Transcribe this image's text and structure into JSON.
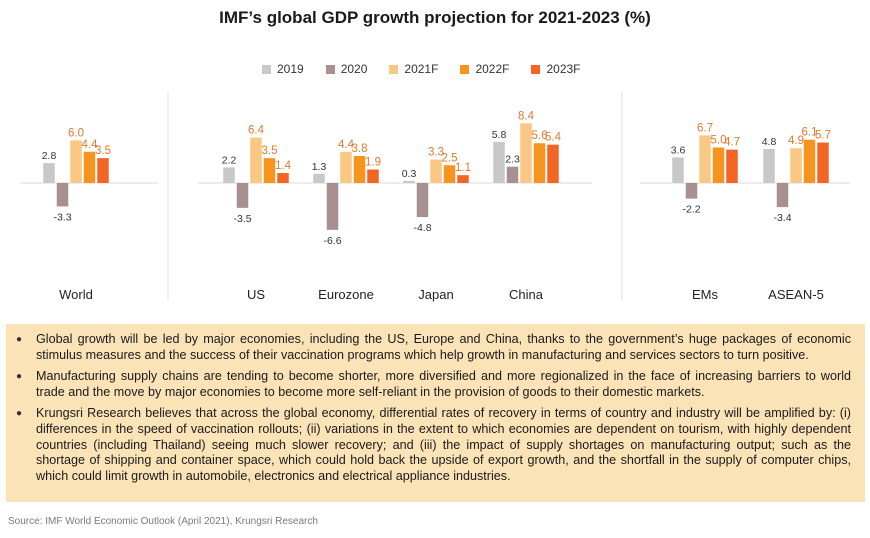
{
  "title": "IMF’s global GDP growth projection for 2021-2023 (%)",
  "colors": {
    "2019": "#c8c8c8",
    "2020": "#a89090",
    "2021F": "#fbc784",
    "2022F": "#f7941d",
    "2023F": "#f26522",
    "negative_label": "#333333",
    "positive_label": "#e07a2e",
    "bullet_bg": "#fbe3b8"
  },
  "legend": [
    {
      "label": "2019",
      "color_key": "2019"
    },
    {
      "label": "2020",
      "color_key": "2020"
    },
    {
      "label": "2021F",
      "color_key": "2021F"
    },
    {
      "label": "2022F",
      "color_key": "2022F"
    },
    {
      "label": "2023F",
      "color_key": "2023F"
    }
  ],
  "chart_data": {
    "type": "bar",
    "categories": [
      "World",
      "US",
      "Eurozone",
      "Japan",
      "China",
      "EMs",
      "ASEAN-5"
    ],
    "series": [
      {
        "name": "2019",
        "values": [
          2.8,
          2.2,
          1.3,
          0.3,
          5.8,
          3.6,
          4.8
        ]
      },
      {
        "name": "2020",
        "values": [
          -3.3,
          -3.5,
          -6.6,
          -4.8,
          2.3,
          -2.2,
          -3.4
        ]
      },
      {
        "name": "2021F",
        "values": [
          6.0,
          6.4,
          4.4,
          3.3,
          8.4,
          6.7,
          4.9
        ]
      },
      {
        "name": "2022F",
        "values": [
          4.4,
          3.5,
          3.8,
          2.5,
          5.6,
          5.0,
          6.1
        ]
      },
      {
        "name": "2023F",
        "values": [
          3.5,
          1.4,
          1.9,
          1.1,
          5.4,
          4.7,
          5.7
        ]
      }
    ],
    "value_labels": [
      [
        "2.8",
        "-3.3",
        "6.0",
        "4.4",
        "3.5"
      ],
      [
        "2.2",
        "-3.5",
        "6.4",
        "3.5",
        "1.4"
      ],
      [
        "1.3",
        "-6.6",
        "4.4",
        "3.8",
        "1.9"
      ],
      [
        "0.3",
        "-4.8",
        "3.3",
        "2.5",
        "1.1"
      ],
      [
        "5.8",
        "2.3",
        "8.4",
        "5.6",
        "5.4"
      ],
      [
        "3.6",
        "-2.2",
        "6.7",
        "5.0",
        "4.7"
      ],
      [
        "4.8",
        "-3.4",
        "4.9",
        "6.1",
        "5.7"
      ]
    ],
    "grid": false,
    "legend_position": "top"
  },
  "bullets": [
    "Global growth will be led by major economies, including the US, Europe and China, thanks to the government’s huge packages of economic stimulus measures and the success of their vaccination programs which help growth in manufacturing and services sectors to turn positive.",
    "Manufacturing supply chains are tending to become shorter, more diversified and more regionalized in the face of increasing barriers to world trade and the move by major economies to become more self-reliant in the provision of goods to their domestic markets.",
    "Krungsri Research believes that across the global economy, differential rates of recovery in terms of country and industry will be amplified by: (i) differences in the speed of vaccination rollouts; (ii) variations in the extent to which economies are dependent on tourism, with highly dependent countries (including Thailand) seeing much slower recovery; and (iii) the impact of supply shortages on manufacturing output; such as the shortage of shipping and container space, which could hold back the upside of export growth, and the shortfall in the supply of computer chips, which could limit growth in automobile, electronics and electrical appliance industries."
  ],
  "source": "Source: IMF World Economic Outlook (April 2021), Krungsri Research"
}
